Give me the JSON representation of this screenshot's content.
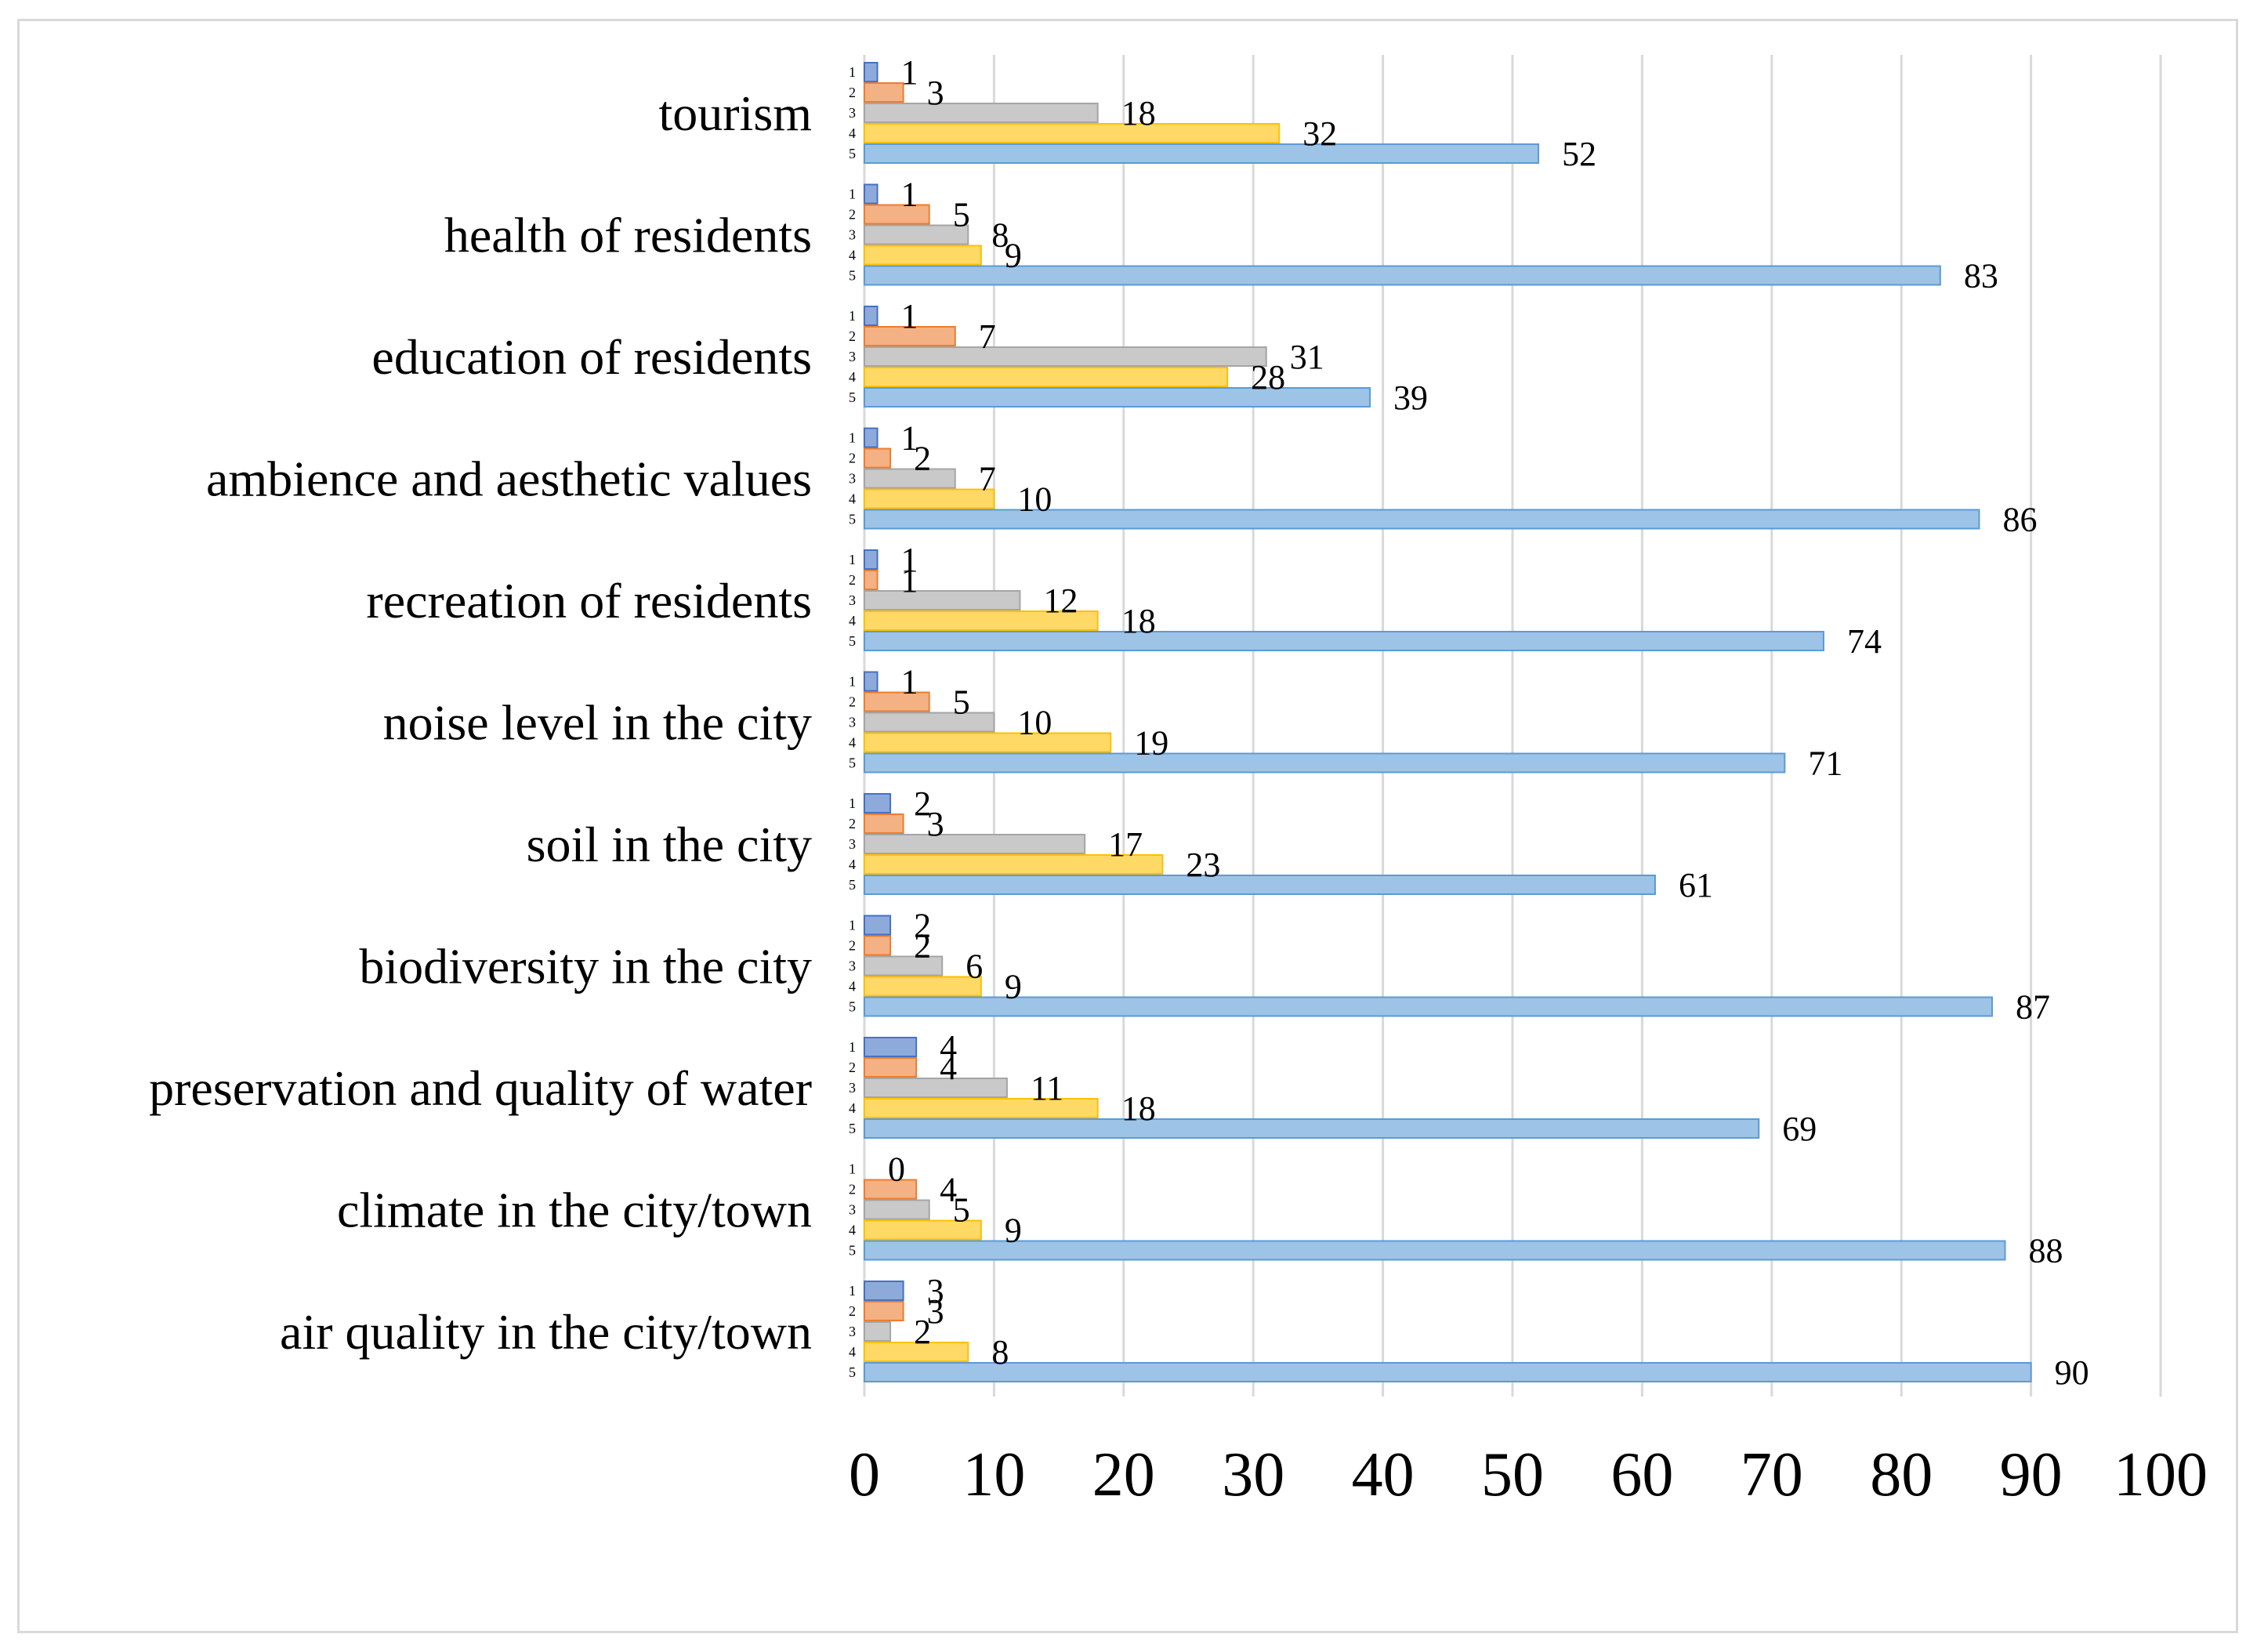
{
  "chart_data": {
    "type": "bar",
    "orientation": "horizontal",
    "title": "",
    "xlabel": "",
    "ylabel": "",
    "xlim": [
      0,
      100
    ],
    "x_ticks": [
      0,
      10,
      20,
      30,
      40,
      50,
      60,
      70,
      80,
      90,
      100
    ],
    "grid": "vertical",
    "legend": "none",
    "rank_labels": [
      "1",
      "2",
      "3",
      "4",
      "5"
    ],
    "series_colors": [
      "#8eaadb",
      "#f4b183",
      "#c9c9c9",
      "#ffd966",
      "#9dc3e6"
    ],
    "series_border_colors": [
      "#4472c4",
      "#ed7d31",
      "#a5a5a5",
      "#ffc000",
      "#5b9bd5"
    ],
    "categories": [
      "tourism",
      "health of residents",
      "education of residents",
      "ambience and aesthetic values",
      "recreation of residents",
      "noise level in the city",
      "soil in the city",
      "biodiversity in the city",
      "preservation and quality of water",
      "climate in the city/town",
      "air quality in the city/town"
    ],
    "series": [
      {
        "values": [
          1,
          1,
          1,
          1,
          1,
          1,
          2,
          2,
          4,
          0,
          3
        ]
      },
      {
        "values": [
          3,
          5,
          7,
          2,
          1,
          5,
          3,
          2,
          4,
          4,
          3
        ]
      },
      {
        "values": [
          18,
          8,
          31,
          7,
          12,
          10,
          17,
          6,
          11,
          5,
          2
        ]
      },
      {
        "values": [
          32,
          9,
          28,
          10,
          18,
          19,
          23,
          9,
          18,
          9,
          8
        ]
      },
      {
        "values": [
          52,
          83,
          39,
          86,
          74,
          71,
          61,
          87,
          69,
          88,
          90
        ]
      }
    ]
  }
}
